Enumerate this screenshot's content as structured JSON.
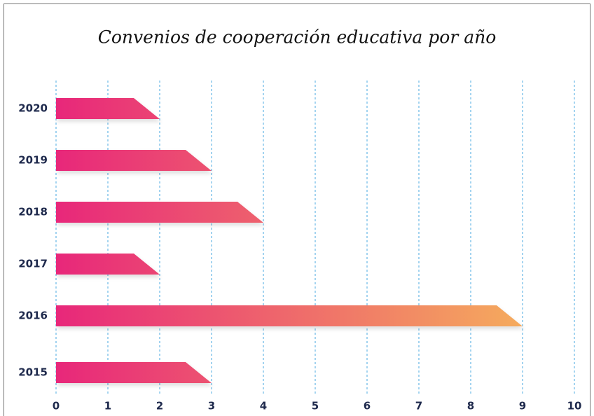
{
  "chart_data": {
    "type": "bar",
    "orientation": "horizontal",
    "title": "Convenios de cooperación educativa por año",
    "categories": [
      "2020",
      "2019",
      "2018",
      "2017",
      "2016",
      "2015"
    ],
    "values": [
      2,
      3,
      4,
      2,
      9,
      3
    ],
    "color": [
      "#e8277a",
      "#f5ab5d"
    ],
    "xlim": [
      0,
      10
    ],
    "xticks": [
      0,
      1,
      2,
      3,
      4,
      5,
      6,
      7,
      8,
      9,
      10
    ],
    "grid": true
  }
}
